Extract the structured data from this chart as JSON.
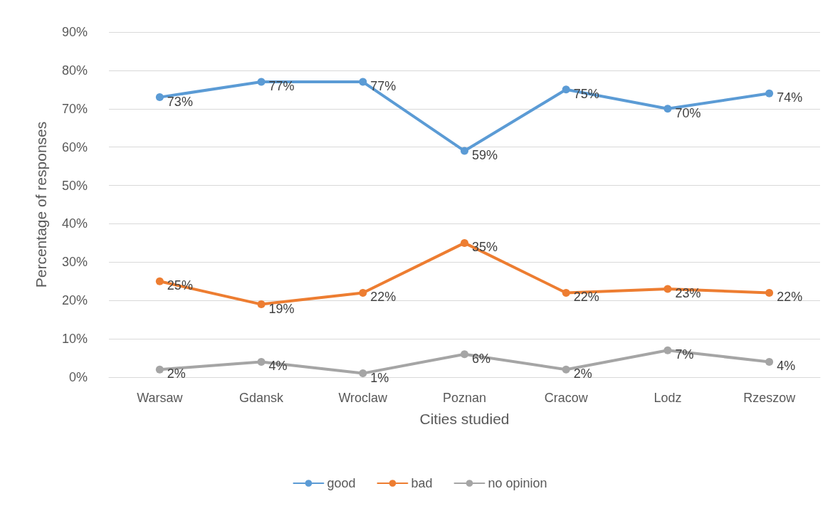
{
  "chart_data": {
    "type": "line",
    "xlabel": "Cities studied",
    "ylabel": "Percentage of responses",
    "categories": [
      "Warsaw",
      "Gdansk",
      "Wroclaw",
      "Poznan",
      "Cracow",
      "Lodz",
      "Rzeszow"
    ],
    "series": [
      {
        "name": "good",
        "color": "#5b9bd5",
        "values": [
          73,
          77,
          77,
          59,
          75,
          70,
          74
        ],
        "value_labels": [
          "73%",
          "77%",
          "77%",
          "59%",
          "75%",
          "70%",
          "74%"
        ]
      },
      {
        "name": "bad",
        "color": "#ed7d31",
        "values": [
          25,
          19,
          22,
          35,
          22,
          23,
          22
        ],
        "value_labels": [
          "25%",
          "19%",
          "22%",
          "35%",
          "22%",
          "23%",
          "22%"
        ]
      },
      {
        "name": "no opinion",
        "color": "#a5a5a5",
        "values": [
          2,
          4,
          1,
          6,
          2,
          7,
          4
        ],
        "value_labels": [
          "2%",
          "4%",
          "1%",
          "6%",
          "2%",
          "7%",
          "4%"
        ]
      }
    ],
    "ylim": [
      0,
      90
    ],
    "yticks": [
      {
        "value": 0,
        "label": "0%"
      },
      {
        "value": 10,
        "label": "10%"
      },
      {
        "value": 20,
        "label": "20%"
      },
      {
        "value": 30,
        "label": "30%"
      },
      {
        "value": 40,
        "label": "40%"
      },
      {
        "value": 50,
        "label": "50%"
      },
      {
        "value": 60,
        "label": "60%"
      },
      {
        "value": 70,
        "label": "70%"
      },
      {
        "value": 80,
        "label": "80%"
      },
      {
        "value": 90,
        "label": "90%"
      }
    ],
    "grid": "y",
    "legend": "bottom",
    "marker": "circle",
    "line_style": "solid"
  }
}
